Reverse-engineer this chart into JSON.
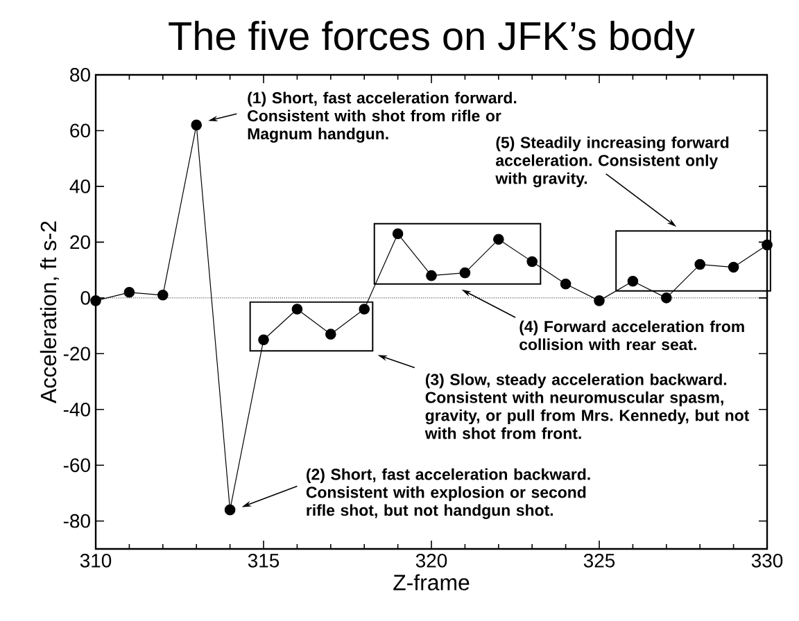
{
  "chart_data": {
    "type": "line",
    "title": "The five forces on JFK’s body",
    "xlabel": "Z-frame",
    "ylabel": "Acceleration, ft s-2",
    "x": [
      310,
      311,
      312,
      313,
      314,
      315,
      316,
      317,
      318,
      319,
      320,
      321,
      322,
      323,
      324,
      325,
      326,
      327,
      328,
      329,
      330
    ],
    "values": [
      -1,
      2,
      1,
      62,
      -76,
      -15,
      -4,
      -13,
      -4,
      23,
      8,
      9,
      21,
      13,
      5,
      -1,
      6,
      0,
      12,
      11,
      19
    ],
    "color": "#000000",
    "marker": "circle",
    "line_style": "solid",
    "xlim": [
      310,
      330
    ],
    "xticks": [
      310,
      315,
      320,
      325,
      330
    ],
    "ylim": [
      -90,
      80
    ],
    "yticks": [
      -80,
      -60,
      -40,
      -20,
      0,
      20,
      40,
      60,
      80
    ],
    "ref_lines": [
      {
        "axis": "y",
        "value": 0,
        "line_style": "dotted",
        "color": "#000000"
      }
    ],
    "annotations": [
      "(1) Short, fast acceleration forward. Consistent with shot from rifle or Magnum handgun.",
      "(2) Short, fast acceleration backward. Consistent with explosion or second rifle shot, but not handgun shot.",
      "(3) Slow, steady acceleration backward. Consistent with neuromuscular spasm, gravity, or pull from Mrs. Kennedy, but not with shot from front.",
      "(4) Forward acceleration from collision with rear seat.",
      "(5) Steadily increasing forward acceleration. Consistent only with gravity."
    ]
  }
}
